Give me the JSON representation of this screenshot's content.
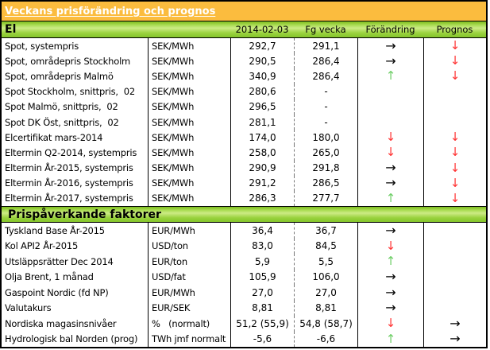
{
  "title": "Veckans prisförändring och prognos",
  "columns": {
    "date": "2014-02-03",
    "previous": "Fg vecka",
    "change": "Förändring",
    "forecast": "Prognos"
  },
  "arrows": {
    "up": "↑",
    "down": "↓",
    "right": "→"
  },
  "colors": {
    "header_bg": "#FBBC3E",
    "section_green": "#92D050",
    "arrow_up": "#6ECE67",
    "arrow_down": "#FF3333",
    "arrow_flat": "#000000"
  },
  "sections": [
    {
      "header": "El",
      "rows": [
        {
          "label": "Spot, systempris",
          "unit": "SEK/MWh",
          "current": "292,7",
          "previous": "291,1",
          "change": "right",
          "forecast": "down"
        },
        {
          "label": "Spot, områdepris Stockholm",
          "unit": "SEK/MWh",
          "current": "290,5",
          "previous": "286,4",
          "change": "right",
          "forecast": "down"
        },
        {
          "label": "Spot, områdepris Malmö",
          "unit": "SEK/MWh",
          "current": "340,9",
          "previous": "286,4",
          "change": "up",
          "forecast": "down"
        },
        {
          "label": "Spot Stockholm, snittpris,  02",
          "unit": "SEK/MWh",
          "current": "280,6",
          "previous": "-",
          "change": "",
          "forecast": ""
        },
        {
          "label": "Spot Malmö, snittpris,  02",
          "unit": "SEK/MWh",
          "current": "296,5",
          "previous": "-",
          "change": "",
          "forecast": ""
        },
        {
          "label": "Spot DK Öst, snittpris,  02",
          "unit": "SEK/MWh",
          "current": "281,1",
          "previous": "-",
          "change": "",
          "forecast": ""
        },
        {
          "label": "Elcertifikat mars-2014",
          "unit": "SEK/MWh",
          "current": "174,0",
          "previous": "180,0",
          "change": "down",
          "forecast": "down"
        },
        {
          "label": "Eltermin Q2-2014, systempris",
          "unit": "SEK/MWh",
          "current": "258,0",
          "previous": "265,0",
          "change": "down",
          "forecast": "down"
        },
        {
          "label": "Eltermin År-2015, systempris",
          "unit": "SEK/MWh",
          "current": "290,9",
          "previous": "291,8",
          "change": "right",
          "forecast": "down"
        },
        {
          "label": "Eltermin År-2016, systempris",
          "unit": "SEK/MWh",
          "current": "291,2",
          "previous": "286,5",
          "change": "right",
          "forecast": "down"
        },
        {
          "label": "Eltermin År-2017, systempris",
          "unit": "SEK/MWh",
          "current": "286,3",
          "previous": "277,7",
          "change": "up",
          "forecast": "down"
        }
      ]
    },
    {
      "header": "Prispåverkande faktorer",
      "rows": [
        {
          "label": "Tyskland Base År-2015",
          "unit": "EUR/MWh",
          "current": "36,4",
          "previous": "36,7",
          "change": "right",
          "forecast": ""
        },
        {
          "label": "Kol API2 År-2015",
          "unit": "USD/ton",
          "current": "83,0",
          "previous": "84,5",
          "change": "down",
          "forecast": ""
        },
        {
          "label": "Utsläppsrätter Dec 2014",
          "unit": "EUR/ton",
          "current": "5,9",
          "previous": "5,5",
          "change": "up",
          "forecast": ""
        },
        {
          "label": "Olja Brent, 1 månad",
          "unit": "USD/fat",
          "current": "105,9",
          "previous": "106,0",
          "change": "right",
          "forecast": ""
        },
        {
          "label": "Gaspoint Nordic (fd NP)",
          "unit": "EUR/MWh",
          "current": "27,0",
          "previous": "27,0",
          "change": "right",
          "forecast": ""
        },
        {
          "label": "Valutakurs",
          "unit": "EUR/SEK",
          "current": "8,81",
          "previous": "8,81",
          "change": "right",
          "forecast": ""
        },
        {
          "label": "Nordiska magasinsnivåer",
          "unit": "%   (normalt)",
          "current": "51,2 (55,9)",
          "previous": "54,8 (58,7)",
          "change": "down",
          "forecast": "right"
        },
        {
          "label": "Hydrologisk bal Norden (prog)",
          "unit": "TWh jmf normalt",
          "current": "-5,6",
          "previous": "-6,6",
          "change": "up",
          "forecast": "right"
        }
      ]
    }
  ]
}
